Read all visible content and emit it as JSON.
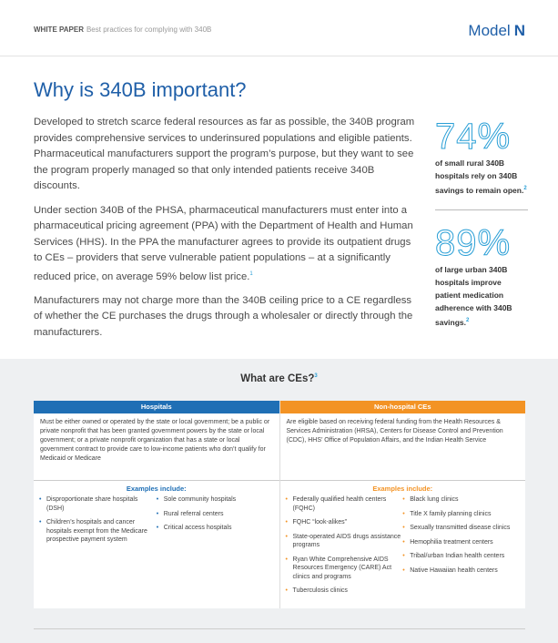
{
  "header": {
    "label": "WHITE PAPER",
    "subtitle": "Best practices for complying with 340B",
    "brand": "Model",
    "brand_mark": "N"
  },
  "title": "Why is 340B important?",
  "paragraphs": [
    {
      "text": "Developed to stretch scarce federal resources as far as possible, the 340B program provides comprehensive services to underinsured populations and eligible patients. Pharmaceutical manufacturers support the program’s purpose, but they want to see the program properly managed so that only intended patients receive 340B discounts."
    },
    {
      "text": "Under section 340B of the PHSA, pharmaceutical manufacturers must enter into a pharmaceutical pricing agreement (PPA) with the Department of Health and Human Services (HHS). In the PPA the manufacturer agrees to provide its outpatient drugs to CEs – providers that serve vulnerable patient populations – at a significantly reduced price, on average 59% below list price.",
      "note": "1"
    },
    {
      "text": "Manufacturers may not charge more than the 340B ceiling price to a CE regardless of whether the CE purchases the drugs through a wholesaler or directly through the manufacturers."
    }
  ],
  "stats": [
    {
      "value": "74%",
      "text": "of small rural 340B hospitals rely on 340B savings to remain open.",
      "note": "2"
    },
    {
      "value": "89%",
      "text": "of large urban 340B hospitals improve patient medication adherence with 340B savings.",
      "note": "2"
    }
  ],
  "section": {
    "title": "What are CEs?",
    "note": "3",
    "columns": [
      {
        "heading": "Hospitals",
        "description": "Must be either owned or operated by the state or local government; be a public or private nonprofit that has been granted government powers by the state or local government; or a private nonprofit organization that has a state or local government contract to provide care to low-income patients who don’t qualify for Medicaid or Medicare",
        "examples_title": "Examples include:",
        "lists": [
          [
            "Disproportionate share hospitals (DSH)",
            "Children’s hospitals and cancer hospitals exempt from the Medicare prospective payment system"
          ],
          [
            "Sole community hospitals",
            "Rural referral centers",
            "Critical access hospitals"
          ]
        ]
      },
      {
        "heading": "Non-hospital CEs",
        "description": "Are eligible based on receiving federal funding from the Health Resources & Services Administration (HRSA), Centers for Disease Control and Prevention (CDC), HHS’ Office of Population Affairs, and the Indian Health Service",
        "examples_title": "Examples include:",
        "lists": [
          [
            "Federally qualified health centers (FQHC)",
            "FQHC “look-alikes”",
            "State-operated AIDS drugs assistance programs",
            "Ryan White Comprehensive AIDS Resources Emergency (CARE) Act clinics and programs",
            "Tuberculosis clinics"
          ],
          [
            "Black lung clinics",
            "Title X family planning clinics",
            "Sexually transmitted disease clinics",
            "Hemophilia treatment centers",
            "Tribal/urban Indian health centers",
            "Native Hawaiian health centers"
          ]
        ]
      }
    ]
  }
}
